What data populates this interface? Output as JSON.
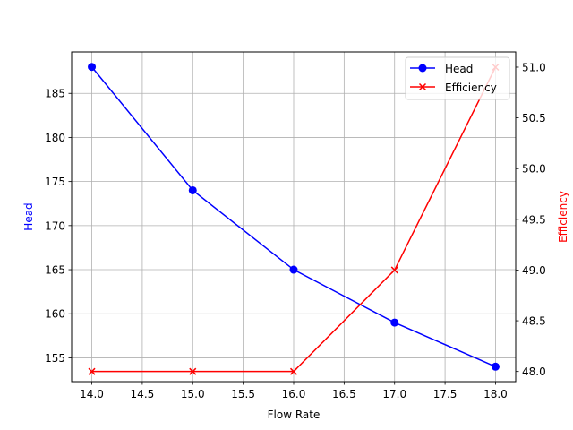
{
  "chart_data": {
    "type": "line",
    "title": "",
    "xlabel": "Flow Rate",
    "ylabel": "Head",
    "y2label": "Efficiency",
    "x": [
      14.0,
      15.0,
      16.0,
      17.0,
      18.0
    ],
    "xlim": [
      13.8,
      18.2
    ],
    "ylim": [
      152.3,
      189.7
    ],
    "y2lim": [
      47.9,
      51.15
    ],
    "xticks": [
      "14.0",
      "14.5",
      "15.0",
      "15.5",
      "16.0",
      "16.5",
      "17.0",
      "17.5",
      "18.0"
    ],
    "yticks": [
      "155",
      "160",
      "165",
      "170",
      "175",
      "180",
      "185"
    ],
    "y2ticks": [
      "48.0",
      "48.5",
      "49.0",
      "49.5",
      "50.0",
      "50.5",
      "51.0"
    ],
    "grid": true,
    "legend_position": "upper right",
    "series": [
      {
        "name": "Head",
        "axis": "left",
        "color": "#0000ff",
        "marker": "circle",
        "values": [
          188,
          174,
          165,
          159,
          154
        ]
      },
      {
        "name": "Efficiency",
        "axis": "right",
        "color": "#ff0000",
        "marker": "x",
        "values": [
          48,
          48,
          48,
          49,
          51
        ]
      }
    ]
  },
  "labels": {
    "xlabel": "Flow Rate",
    "ylabel": "Head",
    "y2label": "Efficiency",
    "legend": [
      "Head",
      "Efficiency"
    ]
  }
}
